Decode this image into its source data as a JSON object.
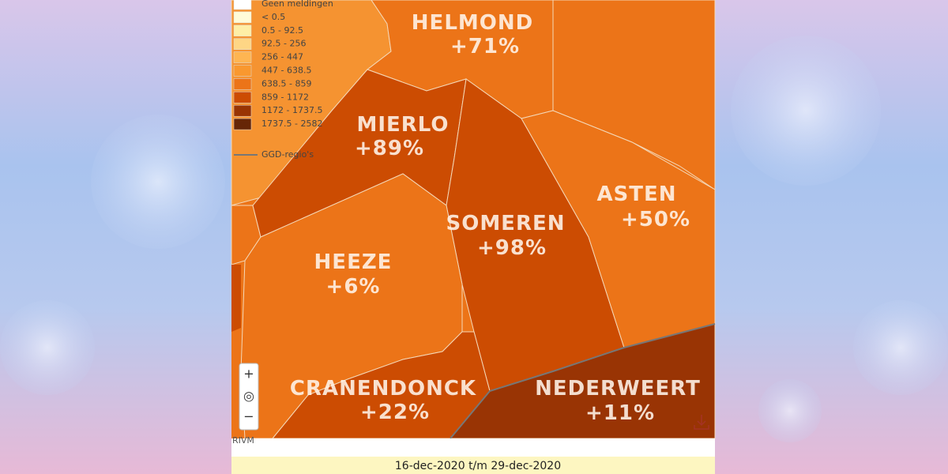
{
  "legend": {
    "items": [
      {
        "label": "Geen meldingen",
        "color": "#ffffff"
      },
      {
        "label": "< 0.5",
        "color": "#fffbd8"
      },
      {
        "label": "0.5 - 92.5",
        "color": "#feeea6"
      },
      {
        "label": "92.5 - 256",
        "color": "#fed685"
      },
      {
        "label": "256 - 447",
        "color": "#feb552"
      },
      {
        "label": "447 - 638.5",
        "color": "#f9982f"
      },
      {
        "label": "638.5 - 859",
        "color": "#ec7418"
      },
      {
        "label": "859 - 1172",
        "color": "#cc4c02"
      },
      {
        "label": "1172 - 1737.5",
        "color": "#993404"
      },
      {
        "label": "1737.5 - 2582",
        "color": "#662506"
      }
    ],
    "boundary_label": "GGD-regio's"
  },
  "regions": [
    {
      "name": "HELMOND",
      "change": "+71%",
      "color": "#ec7418"
    },
    {
      "name": "MIERLO",
      "change": "+89%",
      "color": "#cc4c02"
    },
    {
      "name": "SOMEREN",
      "change": "+98%",
      "color": "#cc4c02"
    },
    {
      "name": "ASTEN",
      "change": "+50%",
      "color": "#ec7418"
    },
    {
      "name": "HEEZE",
      "change": "+6%",
      "color": "#ec7418"
    },
    {
      "name": "CRANENDONCK",
      "change": "+22%",
      "color": "#cc4c02"
    },
    {
      "name": "NEDERWEERT",
      "change": "+11%",
      "color": "#993404"
    }
  ],
  "controls": {
    "zoom_in": "+",
    "reset": "◎",
    "zoom_out": "−"
  },
  "source": "RIVM",
  "period": "16-dec-2020 t/m 29-dec-2020"
}
